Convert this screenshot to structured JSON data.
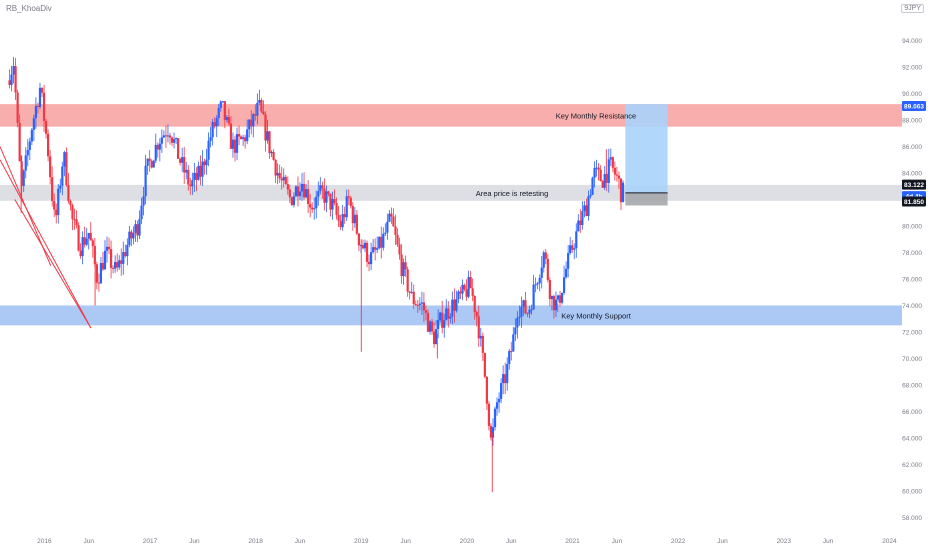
{
  "header": {
    "symbol_label": "RB_KhoaDiv",
    "currency_label": "9JPY"
  },
  "colors": {
    "bull": "#2962ff",
    "bear": "#f23645",
    "resistance_zone": "#f7a09d",
    "support_zone": "#9dbff5",
    "retest_zone": "#d1d4dc",
    "target_box": "#a9d3f9",
    "stop_box": "#a6a7ab",
    "trendline": "#f23645",
    "axis_text": "#787b86"
  },
  "chart_data": {
    "type": "candlestick",
    "x_axis_labels": [
      "2016",
      "Jun",
      "2017",
      "Jun",
      "2018",
      "Jun",
      "2019",
      "Jun",
      "2020",
      "Jun",
      "2021",
      "Jun",
      "2022",
      "Jun",
      "2023",
      "Jun",
      "2024"
    ],
    "y_axis_ticks": [
      "94.000",
      "92.000",
      "90.000",
      "88.000",
      "86.000",
      "84.000",
      "82.000",
      "80.000",
      "78.000",
      "76.000",
      "74.000",
      "72.000",
      "70.000",
      "68.000",
      "66.000",
      "64.000",
      "62.000",
      "60.000",
      "58.000"
    ],
    "ylim": [
      57.2,
      95.4
    ],
    "grid": false,
    "price_path": [
      {
        "t": 2015.67,
        "v": 91.0
      },
      {
        "t": 2015.73,
        "v": 92.4
      },
      {
        "t": 2015.8,
        "v": 82.5
      },
      {
        "t": 2015.9,
        "v": 87.5
      },
      {
        "t": 2015.98,
        "v": 90.5
      },
      {
        "t": 2016.05,
        "v": 86.0
      },
      {
        "t": 2016.12,
        "v": 80.0
      },
      {
        "t": 2016.2,
        "v": 85.5
      },
      {
        "t": 2016.28,
        "v": 80.5
      },
      {
        "t": 2016.36,
        "v": 78.5
      },
      {
        "t": 2016.44,
        "v": 79.5
      },
      {
        "t": 2016.52,
        "v": 76.0
      },
      {
        "t": 2016.6,
        "v": 78.0
      },
      {
        "t": 2016.7,
        "v": 76.5
      },
      {
        "t": 2016.8,
        "v": 78.5
      },
      {
        "t": 2016.9,
        "v": 80.0
      },
      {
        "t": 2016.98,
        "v": 84.0
      },
      {
        "t": 2017.1,
        "v": 86.5
      },
      {
        "t": 2017.2,
        "v": 87.5
      },
      {
        "t": 2017.3,
        "v": 85.0
      },
      {
        "t": 2017.4,
        "v": 83.0
      },
      {
        "t": 2017.5,
        "v": 84.0
      },
      {
        "t": 2017.6,
        "v": 87.0
      },
      {
        "t": 2017.7,
        "v": 89.0
      },
      {
        "t": 2017.8,
        "v": 86.0
      },
      {
        "t": 2017.9,
        "v": 86.5
      },
      {
        "t": 2018.0,
        "v": 88.0
      },
      {
        "t": 2018.05,
        "v": 89.0
      },
      {
        "t": 2018.15,
        "v": 86.0
      },
      {
        "t": 2018.25,
        "v": 83.5
      },
      {
        "t": 2018.35,
        "v": 82.0
      },
      {
        "t": 2018.45,
        "v": 83.5
      },
      {
        "t": 2018.55,
        "v": 81.5
      },
      {
        "t": 2018.65,
        "v": 82.5
      },
      {
        "t": 2018.75,
        "v": 81.5
      },
      {
        "t": 2018.82,
        "v": 80.0
      },
      {
        "t": 2018.9,
        "v": 82.0
      },
      {
        "t": 2019.0,
        "v": 79.0
      },
      {
        "t": 2019.1,
        "v": 77.5
      },
      {
        "t": 2019.2,
        "v": 78.5
      },
      {
        "t": 2019.3,
        "v": 80.5
      },
      {
        "t": 2019.4,
        "v": 77.0
      },
      {
        "t": 2019.5,
        "v": 74.5
      },
      {
        "t": 2019.6,
        "v": 74.0
      },
      {
        "t": 2019.7,
        "v": 71.5
      },
      {
        "t": 2019.78,
        "v": 73.0
      },
      {
        "t": 2019.88,
        "v": 74.0
      },
      {
        "t": 2019.95,
        "v": 74.5
      },
      {
        "t": 2020.05,
        "v": 75.5
      },
      {
        "t": 2020.12,
        "v": 73.0
      },
      {
        "t": 2020.2,
        "v": 68.0
      },
      {
        "t": 2020.25,
        "v": 63.5
      },
      {
        "t": 2020.3,
        "v": 66.5
      },
      {
        "t": 2020.38,
        "v": 68.5
      },
      {
        "t": 2020.45,
        "v": 71.0
      },
      {
        "t": 2020.5,
        "v": 74.0
      },
      {
        "t": 2020.6,
        "v": 73.5
      },
      {
        "t": 2020.68,
        "v": 76.0
      },
      {
        "t": 2020.75,
        "v": 78.0
      },
      {
        "t": 2020.82,
        "v": 74.5
      },
      {
        "t": 2020.88,
        "v": 74.0
      },
      {
        "t": 2020.95,
        "v": 76.5
      },
      {
        "t": 2021.02,
        "v": 78.5
      },
      {
        "t": 2021.1,
        "v": 80.5
      },
      {
        "t": 2021.15,
        "v": 81.5
      },
      {
        "t": 2021.22,
        "v": 84.0
      },
      {
        "t": 2021.3,
        "v": 83.5
      },
      {
        "t": 2021.38,
        "v": 84.5
      },
      {
        "t": 2021.45,
        "v": 83.5
      },
      {
        "t": 2021.48,
        "v": 82.5
      }
    ],
    "wick_extremes": [
      {
        "t": 2015.78,
        "low": 81.0
      },
      {
        "t": 2016.48,
        "low": 74.0
      },
      {
        "t": 2019.0,
        "low": 70.5
      },
      {
        "t": 2019.72,
        "low": 70.0
      },
      {
        "t": 2020.24,
        "low": 59.9
      },
      {
        "t": 2020.86,
        "low": 73.5
      },
      {
        "t": 2021.32,
        "high": 85.8
      }
    ],
    "zones": [
      {
        "name": "resistance",
        "label": "Key Monthly Resistance",
        "low": 87.5,
        "high": 89.2
      },
      {
        "name": "retest",
        "label": "Area price is retesting",
        "low": 81.9,
        "high": 83.1
      },
      {
        "name": "support",
        "label": "Key Monthly Support",
        "low": 72.5,
        "high": 74.0
      }
    ],
    "position": {
      "t_start": 2021.5,
      "t_end": 2021.9,
      "entry": 82.5,
      "target": 89.2,
      "stop": 81.85
    },
    "trendlines": [
      {
        "t1": 2015.58,
        "v1": 86.0,
        "t2": 2016.06,
        "v2": 77.0
      },
      {
        "t1": 2015.72,
        "v1": 82.0,
        "t2": 2016.44,
        "v2": 72.3
      },
      {
        "t1": 2015.58,
        "v1": 85.0,
        "t2": 2016.44,
        "v2": 72.3
      }
    ],
    "price_labels": [
      {
        "name": "target-price-label",
        "value": "89.063",
        "v": 89.06,
        "color": "#2962ff",
        "text": "#ffffff"
      },
      {
        "name": "current-price-label",
        "value": "83.122",
        "v": 83.12,
        "color": "#131722",
        "text": "#ffffff"
      },
      {
        "name": "countdown-label",
        "value": "4d 4h",
        "v": 82.25,
        "color": "#2962ff",
        "text": "#ffffff"
      },
      {
        "name": "stop-price-label",
        "value": "81.850",
        "v": 81.85,
        "color": "#131722",
        "text": "#ffffff"
      }
    ]
  }
}
